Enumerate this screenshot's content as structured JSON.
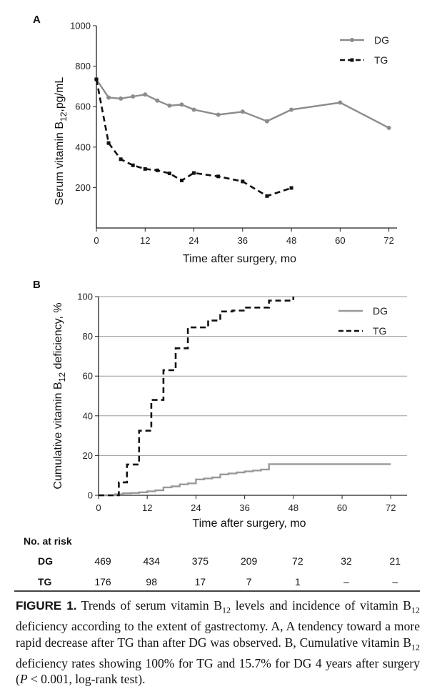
{
  "chart_data": [
    {
      "type": "line",
      "panel": "A",
      "xlabel": "Time after surgery, mo",
      "ylabel_pre": "Serum vitamin B",
      "ylabel_sub": "12",
      "ylabel_post": ",pg/mL",
      "xlim": [
        0,
        74
      ],
      "ylim": [
        0,
        1000
      ],
      "xticks": [
        0,
        12,
        24,
        36,
        48,
        60,
        72
      ],
      "yticks": [
        200,
        400,
        600,
        800,
        1000
      ],
      "grid": false,
      "legend_position": "top-right",
      "series": [
        {
          "name": "DG",
          "style": "solid-dots",
          "color": "#8c8c8c",
          "x": [
            0,
            3,
            6,
            9,
            12,
            15,
            18,
            21,
            24,
            30,
            36,
            42,
            48,
            60,
            72
          ],
          "y": [
            735,
            645,
            640,
            650,
            660,
            630,
            605,
            610,
            585,
            560,
            575,
            528,
            585,
            620,
            495
          ]
        },
        {
          "name": "TG",
          "style": "dashed-squares",
          "color": "#111111",
          "x": [
            0,
            3,
            6,
            9,
            12,
            15,
            18,
            21,
            24,
            30,
            36,
            42,
            48
          ],
          "y": [
            735,
            420,
            340,
            310,
            292,
            285,
            270,
            235,
            272,
            255,
            230,
            158,
            198
          ]
        }
      ]
    },
    {
      "type": "line",
      "panel": "B",
      "xlabel": "Time after surgery, mo",
      "ylabel_pre": "Cumulative vitamin B",
      "ylabel_sub": "12",
      "ylabel_post": " deficiency, %",
      "xlim": [
        0,
        76
      ],
      "ylim": [
        0,
        100
      ],
      "xticks": [
        0,
        12,
        24,
        36,
        48,
        60,
        72
      ],
      "yticks": [
        0,
        20,
        40,
        60,
        80,
        100
      ],
      "grid": true,
      "legend_position": "top-right",
      "series": [
        {
          "name": "DG",
          "style": "step-solid",
          "color": "#999999",
          "x": [
            0,
            2,
            4,
            6,
            8,
            10,
            12,
            14,
            16,
            18,
            20,
            22,
            24,
            26,
            28,
            30,
            32,
            34,
            36,
            38,
            40,
            42,
            48,
            60,
            72
          ],
          "y": [
            0,
            0,
            0.5,
            1,
            1.2,
            1.5,
            2,
            2.5,
            4,
            4.5,
            5.5,
            6,
            8,
            8.5,
            9,
            10.5,
            11,
            11.5,
            12,
            12.5,
            13,
            15.7,
            15.7,
            15.7,
            15.7
          ]
        },
        {
          "name": "TG",
          "style": "step-dashed",
          "color": "#111111",
          "x": [
            0,
            3,
            5,
            7,
            9,
            10,
            12,
            13,
            15,
            16,
            18,
            19,
            21,
            22,
            24,
            27,
            30,
            33,
            36,
            39,
            42,
            44,
            46,
            48
          ],
          "y": [
            0,
            0,
            6.5,
            15.5,
            15.5,
            32.5,
            32.5,
            48,
            48,
            63,
            63,
            74,
            74,
            84.5,
            84.5,
            88,
            92.5,
            93,
            94.5,
            94.5,
            98,
            98,
            98,
            100
          ]
        }
      ]
    }
  ],
  "risk_table": {
    "title": "No. at risk",
    "rows": [
      {
        "label": "DG",
        "values": [
          "469",
          "434",
          "375",
          "209",
          "72",
          "32",
          "21"
        ]
      },
      {
        "label": "TG",
        "values": [
          "176",
          "98",
          "17",
          "7",
          "1",
          "–",
          "–"
        ]
      }
    ]
  },
  "caption": {
    "label": "FIGURE 1.",
    "parts": [
      " Trends of serum vitamin B",
      "12",
      " levels and incidence of vitamin B",
      "12",
      " deficiency according to the extent of gastrectomy. A, A tendency toward a more rapid decrease after TG than after DG was observed. B, Cumulative vitamin B",
      "12",
      " deficiency rates showing 100% for TG and 15.7% for DG 4 years after surgery (",
      "P",
      " < 0.001, log-rank test)."
    ]
  }
}
